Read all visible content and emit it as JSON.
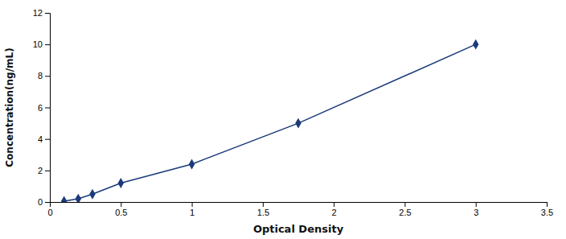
{
  "chart_data": {
    "type": "line",
    "xlabel": "Optical Density",
    "ylabel": "Concentration(ng/mL)",
    "x": [
      0.1,
      0.2,
      0.3,
      0.5,
      1.0,
      1.75,
      3.0
    ],
    "values": [
      0.05,
      0.2,
      0.5,
      1.2,
      2.4,
      5.0,
      10.0
    ],
    "color": "#1a3a7a",
    "marker": "diamond",
    "line_style": "solid",
    "xlim": [
      0,
      3.5
    ],
    "ylim": [
      0,
      12
    ],
    "xticks": [
      0,
      0.5,
      1,
      1.5,
      2,
      2.5,
      3,
      3.5
    ],
    "yticks": [
      0,
      2,
      4,
      6,
      8,
      10,
      12
    ]
  }
}
